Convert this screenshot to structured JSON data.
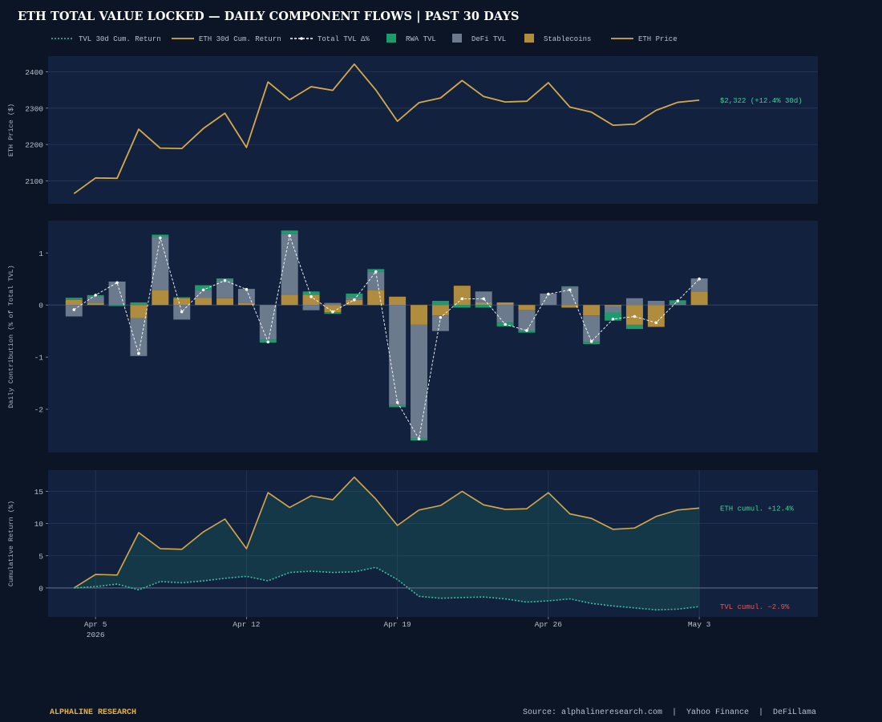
{
  "title": "ETH TOTAL VALUE LOCKED — DAILY COMPONENT FLOWS  |  PAST 30 DAYS",
  "footer": {
    "brand": "ALPHALINE RESEARCH",
    "source": "Source: alphalineresearch.com  |  Yahoo Finance  |  DeFiLlama"
  },
  "colors": {
    "background": "#0b1526",
    "panel": "#12213d",
    "eth": "#d4a94c",
    "rwa": "#1f9a6b",
    "defi": "#6b7a8d",
    "stable": "#b08d3e",
    "tvl_line": "#35c49a",
    "green_label": "#3fd39a",
    "red_label": "#e45858"
  },
  "chart_data": {
    "type": "composite",
    "legend": {
      "placement": "top",
      "entries": [
        {
          "label": "TVL 30d Cum. Return",
          "style": "dotted-line",
          "color": "#35c49a"
        },
        {
          "label": "ETH 30d Cum. Return",
          "style": "line",
          "color": "#d4a94c"
        },
        {
          "label": "Total TVL Δ%",
          "style": "dashed-marker",
          "color": "#ffffff"
        },
        {
          "label": "RWA TVL",
          "style": "patch",
          "color": "#1f9a6b"
        },
        {
          "label": "DeFi TVL",
          "style": "patch",
          "color": "#6b7a8d"
        },
        {
          "label": "Stablecoins",
          "style": "patch",
          "color": "#b08d3e"
        },
        {
          "label": "ETH Price",
          "style": "line",
          "color": "#d4a94c"
        }
      ]
    },
    "x_ticks": [
      {
        "label": "Apr 5",
        "sub": "2026",
        "day": 1
      },
      {
        "label": "Apr 12",
        "sub": "",
        "day": 8
      },
      {
        "label": "Apr 19",
        "sub": "",
        "day": 15
      },
      {
        "label": "Apr 26",
        "sub": "",
        "day": 22
      },
      {
        "label": "May 3",
        "sub": "",
        "day": 29
      }
    ],
    "x_range": [
      -1.2,
      34.5
    ],
    "days": [
      0,
      1,
      2,
      3,
      4,
      5,
      6,
      7,
      8,
      9,
      10,
      11,
      12,
      13,
      14,
      15,
      16,
      17,
      18,
      19,
      20,
      21,
      22,
      23,
      24,
      25,
      26,
      27,
      28,
      29
    ],
    "panels": [
      {
        "id": "price",
        "ylabel": "ETH Price ($)",
        "ylim": [
          2037,
          2443
        ],
        "yticks": [
          2100,
          2200,
          2300,
          2400
        ],
        "grid": true,
        "series": [
          {
            "name": "ETH Price",
            "type": "line",
            "values": [
              2065,
              2108,
              2107,
              2242,
              2190,
              2189,
              2244,
              2286,
              2192,
              2372,
              2323,
              2359,
              2349,
              2421,
              2350,
              2264,
              2315,
              2328,
              2376,
              2332,
              2317,
              2319,
              2370,
              2303,
              2289,
              2253,
              2256,
              2294,
              2316,
              2322
            ]
          }
        ],
        "annotation": "$2,322  (+12.4% 30d)"
      },
      {
        "id": "flows",
        "ylabel": "Daily Contribution (% of Total TVL)",
        "ylim": [
          -2.83,
          1.62
        ],
        "yticks": [
          -2,
          -1,
          0,
          1
        ],
        "grid": false,
        "stacked_bars": {
          "rwa": [
            0.04,
            0.02,
            -0.02,
            0.05,
            0.04,
            0.02,
            0.09,
            0.03,
            0.0,
            -0.05,
            0.06,
            0.06,
            -0.03,
            0.07,
            0.05,
            -0.04,
            -0.04,
            0.08,
            -0.05,
            -0.05,
            -0.07,
            -0.04,
            0.0,
            0.02,
            -0.04,
            -0.15,
            -0.08,
            0.0,
            0.06,
            0.0
          ],
          "defi": [
            -0.22,
            0.13,
            0.45,
            -0.73,
            1.03,
            -0.28,
            0.15,
            0.35,
            0.27,
            -0.67,
            1.17,
            -0.1,
            0.04,
            0.05,
            0.36,
            -1.92,
            -2.18,
            -0.3,
            0.0,
            0.21,
            -0.34,
            -0.39,
            0.22,
            0.34,
            -0.51,
            -0.13,
            0.13,
            0.08,
            0.03,
            0.25
          ],
          "stable": [
            0.1,
            0.04,
            0.0,
            -0.25,
            0.28,
            0.13,
            0.14,
            0.13,
            0.04,
            0.0,
            0.2,
            0.2,
            -0.14,
            0.1,
            0.28,
            0.16,
            -0.38,
            -0.2,
            0.37,
            0.05,
            0.05,
            -0.1,
            0.0,
            -0.05,
            -0.2,
            -0.02,
            -0.38,
            -0.42,
            0.0,
            0.26
          ]
        },
        "total_line": [
          -0.09,
          0.19,
          0.43,
          -0.93,
          1.29,
          -0.13,
          0.29,
          0.47,
          0.3,
          -0.71,
          1.33,
          0.16,
          -0.13,
          0.1,
          0.64,
          -1.87,
          -2.57,
          -0.24,
          0.12,
          0.12,
          -0.37,
          -0.49,
          0.21,
          0.29,
          -0.7,
          -0.27,
          -0.22,
          -0.34,
          0.08,
          0.5
        ]
      },
      {
        "id": "cumulative",
        "ylabel": "Cumulative Return (%)",
        "ylim": [
          -4.5,
          18.3
        ],
        "yticks": [
          0,
          5,
          10,
          15
        ],
        "grid": true,
        "series": [
          {
            "name": "ETH 30d Cum. Return",
            "type": "line",
            "values": [
              0,
              2.1,
              2.0,
              8.6,
              6.1,
              6.0,
              8.7,
              10.7,
              6.1,
              14.8,
              12.5,
              14.3,
              13.7,
              17.2,
              13.8,
              9.7,
              12.1,
              12.8,
              15.0,
              12.9,
              12.2,
              12.3,
              14.8,
              11.5,
              10.8,
              9.1,
              9.3,
              11.1,
              12.1,
              12.4
            ]
          },
          {
            "name": "TVL 30d Cum. Return",
            "type": "dotted-line",
            "values": [
              0,
              0.2,
              0.6,
              -0.3,
              1.0,
              0.8,
              1.1,
              1.5,
              1.8,
              1.1,
              2.4,
              2.6,
              2.4,
              2.5,
              3.2,
              1.3,
              -1.3,
              -1.6,
              -1.5,
              -1.4,
              -1.7,
              -2.2,
              -2.0,
              -1.7,
              -2.4,
              -2.8,
              -3.1,
              -3.4,
              -3.3,
              -2.9
            ]
          }
        ],
        "annotations": [
          "ETH cumul. +12.4%",
          "TVL cumul. −2.9%"
        ]
      }
    ]
  }
}
